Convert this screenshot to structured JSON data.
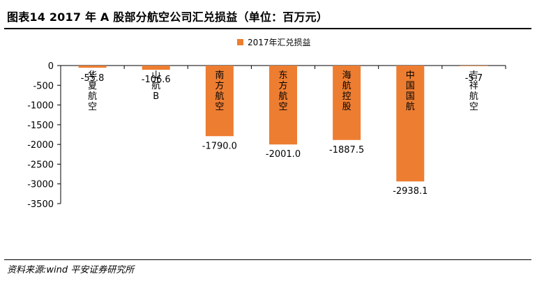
{
  "page": {
    "title": "图表14    2017 年 A 股部分航空公司汇兑损益（单位：百万元）",
    "source": "资料来源:wind 平安证券研究所"
  },
  "chart_data": {
    "type": "bar",
    "title": "2017 年 A 股部分航空公司汇兑损益（单位：百万元）",
    "categories": [
      "华夏航空",
      "山航B",
      "南方航空",
      "东方航空",
      "海航控股",
      "中国国航",
      "吉祥航空"
    ],
    "series": [
      {
        "name": "2017年汇兑损益",
        "color": "#ED7D31",
        "values": [
          -55.8,
          -106.6,
          -1790.0,
          -2001.0,
          -1887.5,
          -2938.1,
          -5.7
        ],
        "labels": [
          "-55.8",
          "-106.6",
          "-1790.0",
          "-2001.0",
          "-1887.5",
          "-2938.1",
          "-5.7"
        ]
      }
    ],
    "yticks": [
      0,
      -500,
      -1000,
      -1500,
      -2000,
      -2500,
      -3000,
      -3500
    ],
    "ytick_labels": [
      "0",
      "-500",
      "-1000",
      "-1500",
      "-2000",
      "-2500",
      "-3000",
      "-3500"
    ],
    "ylim": [
      -3500,
      0
    ],
    "legend": "top-right",
    "grid": false,
    "xlabel": "",
    "ylabel": ""
  }
}
